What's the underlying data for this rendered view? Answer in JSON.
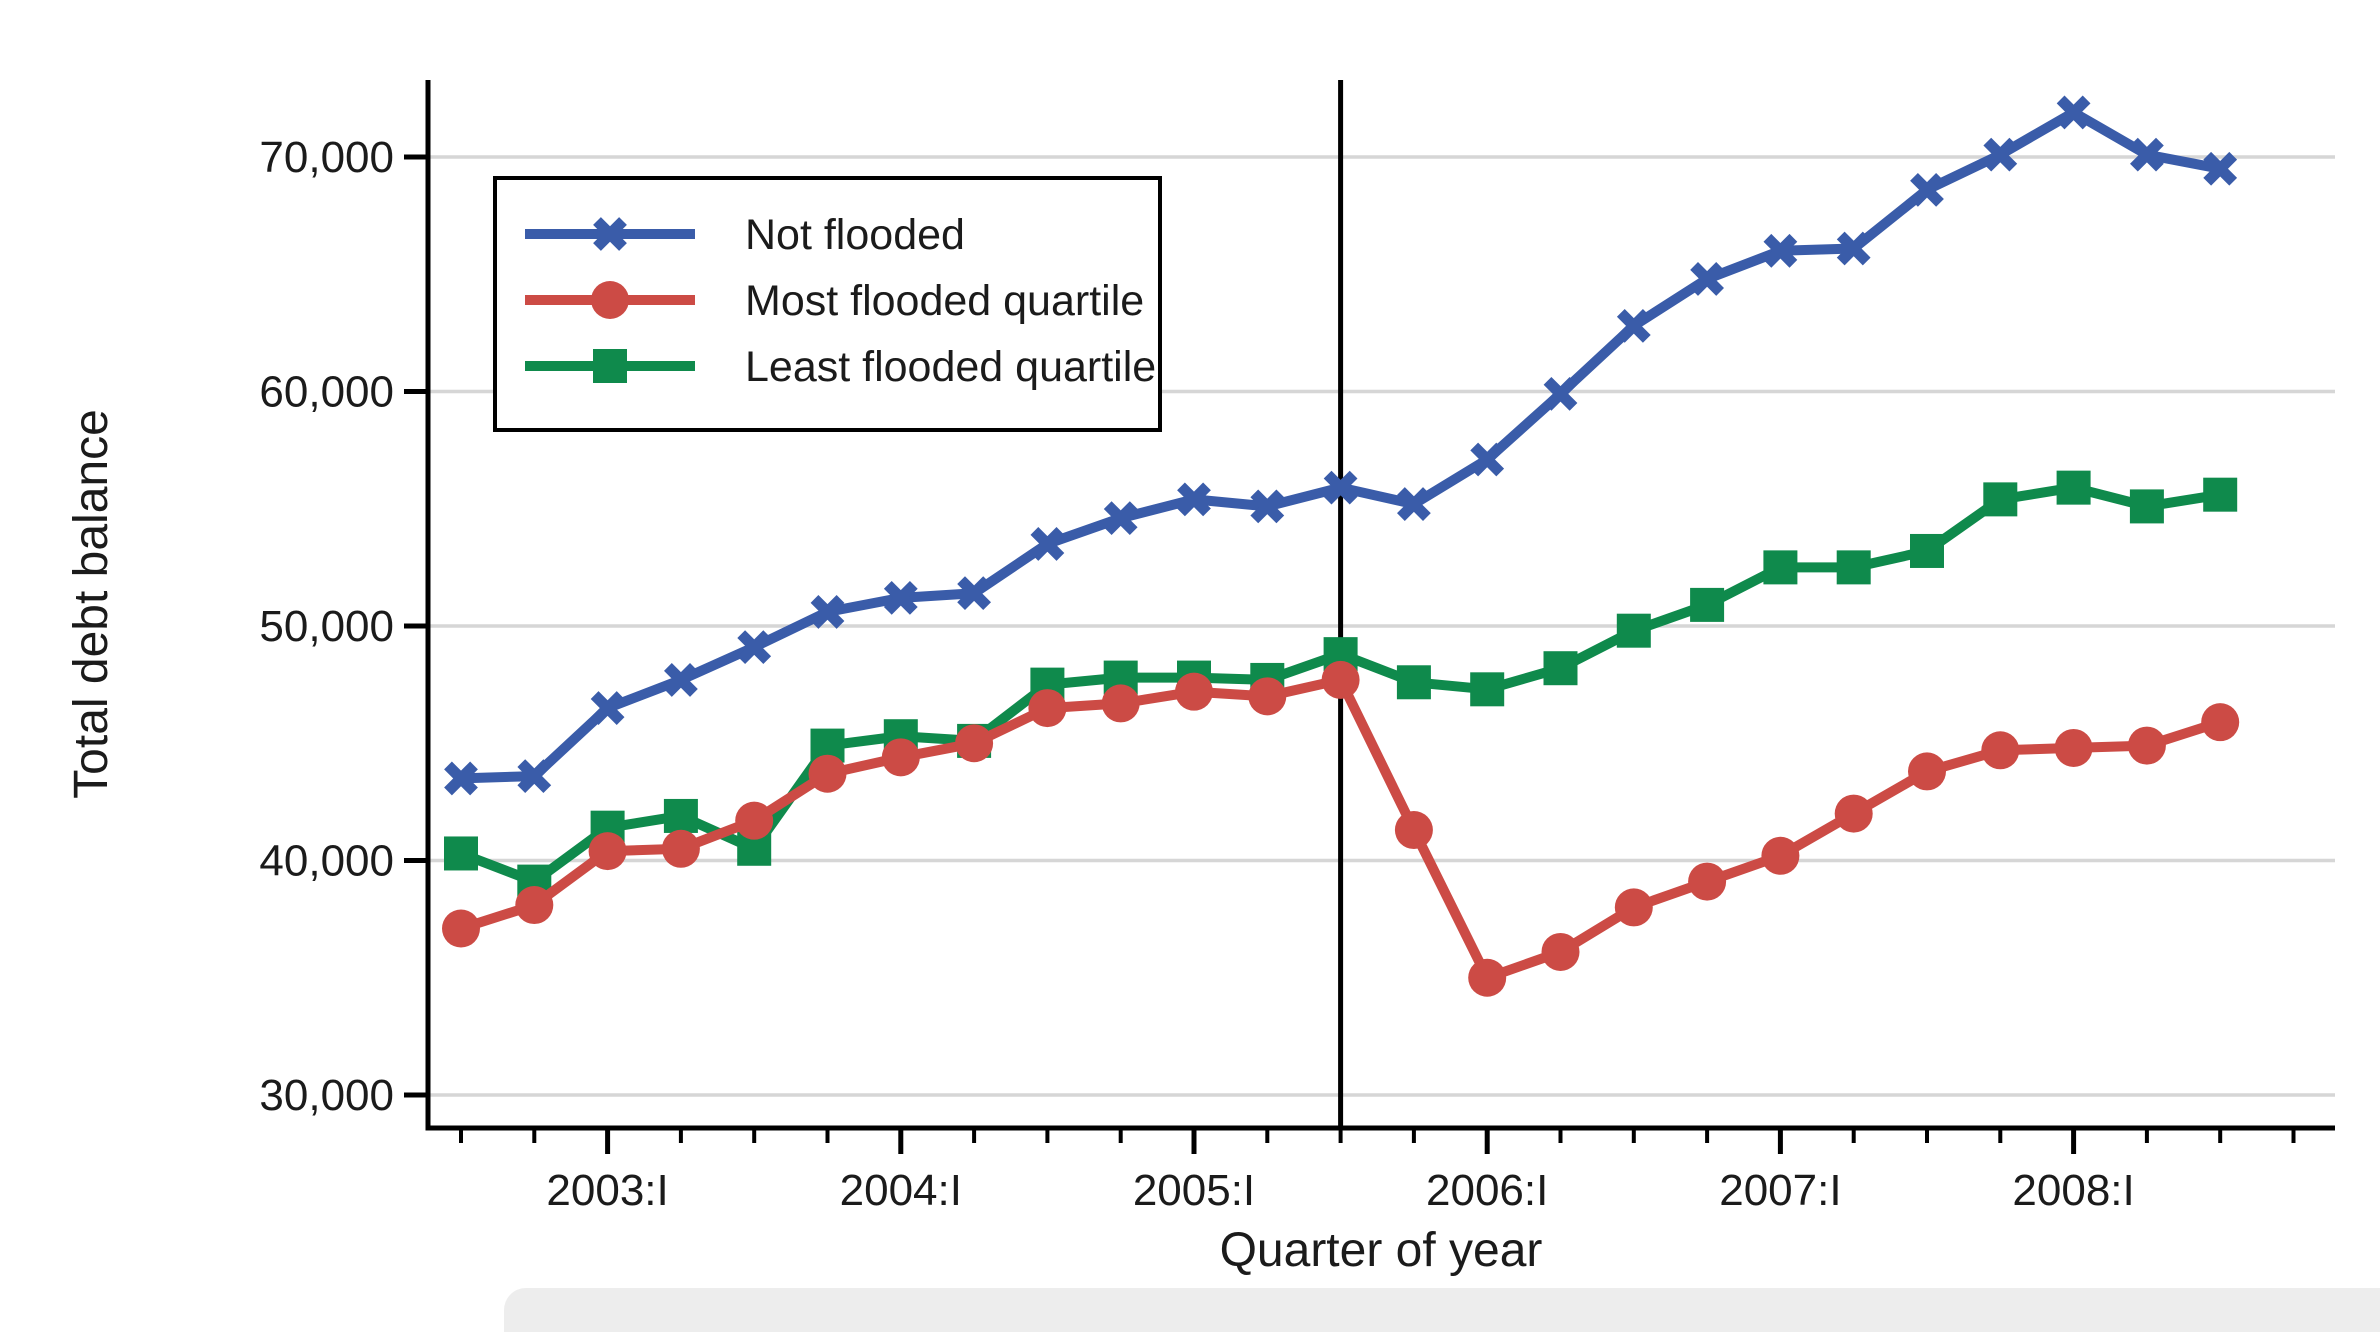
{
  "page": {
    "background": "#ffffff"
  },
  "chart_data": {
    "type": "line",
    "title": "",
    "xlabel": "Quarter of year",
    "ylabel": "Total debt balance",
    "categories": [
      "2002:III",
      "2002:IV",
      "2003:I",
      "2003:II",
      "2003:III",
      "2003:IV",
      "2004:I",
      "2004:II",
      "2004:III",
      "2004:IV",
      "2005:I",
      "2005:II",
      "2005:III",
      "2005:IV",
      "2006:I",
      "2006:II",
      "2006:III",
      "2006:IV",
      "2007:I",
      "2007:II",
      "2007:III",
      "2007:IV",
      "2008:I",
      "2008:II",
      "2008:III"
    ],
    "x_major_ticks": [
      {
        "index": 2,
        "label": "2003:I"
      },
      {
        "index": 6,
        "label": "2004:I"
      },
      {
        "index": 10,
        "label": "2005:I"
      },
      {
        "index": 14,
        "label": "2006:I"
      },
      {
        "index": 18,
        "label": "2007:I"
      },
      {
        "index": 22,
        "label": "2008:I"
      }
    ],
    "y_ticks": [
      {
        "value": 30000,
        "label": "30,000"
      },
      {
        "value": 40000,
        "label": "40,000"
      },
      {
        "value": 50000,
        "label": "50,000"
      },
      {
        "value": 60000,
        "label": "60,000"
      },
      {
        "value": 70000,
        "label": "70,000"
      }
    ],
    "ylim": [
      28600,
      73300
    ],
    "grid": "horizontal-gridlines",
    "gridline_color": "#d6d6d6",
    "axis_color": "#000000",
    "legend_position": "top-left-inside",
    "reference_line": {
      "category": "2005:III",
      "index": 12,
      "orientation": "vertical",
      "color": "#000000"
    },
    "series": [
      {
        "name": "Not flooded",
        "marker": "x",
        "color": "#3a5ca9",
        "values": [
          43500,
          43600,
          46500,
          47700,
          49100,
          50600,
          51200,
          51400,
          53500,
          54600,
          55400,
          55100,
          55900,
          55200,
          57100,
          59900,
          62800,
          64800,
          66000,
          66100,
          68600,
          70100,
          71900,
          70100,
          69500
        ]
      },
      {
        "name": "Most flooded quartile",
        "marker": "circle",
        "color": "#cc4b45",
        "values": [
          37100,
          38100,
          40400,
          40500,
          41700,
          43700,
          44400,
          45000,
          46500,
          46700,
          47200,
          47000,
          47700,
          41300,
          35000,
          36100,
          38000,
          39100,
          40200,
          42000,
          43800,
          44700,
          44800,
          44900,
          45900
        ]
      },
      {
        "name": "Least flooded quartile",
        "marker": "square",
        "color": "#0f8a4c",
        "values": [
          40300,
          39100,
          41400,
          41900,
          40500,
          44900,
          45300,
          45100,
          47500,
          47800,
          47800,
          47700,
          48800,
          47600,
          47300,
          48200,
          49800,
          50900,
          52500,
          52500,
          53200,
          55400,
          55900,
          55100,
          55600
        ]
      }
    ]
  },
  "decor": {
    "bottom_strip_color": "#ededed"
  }
}
